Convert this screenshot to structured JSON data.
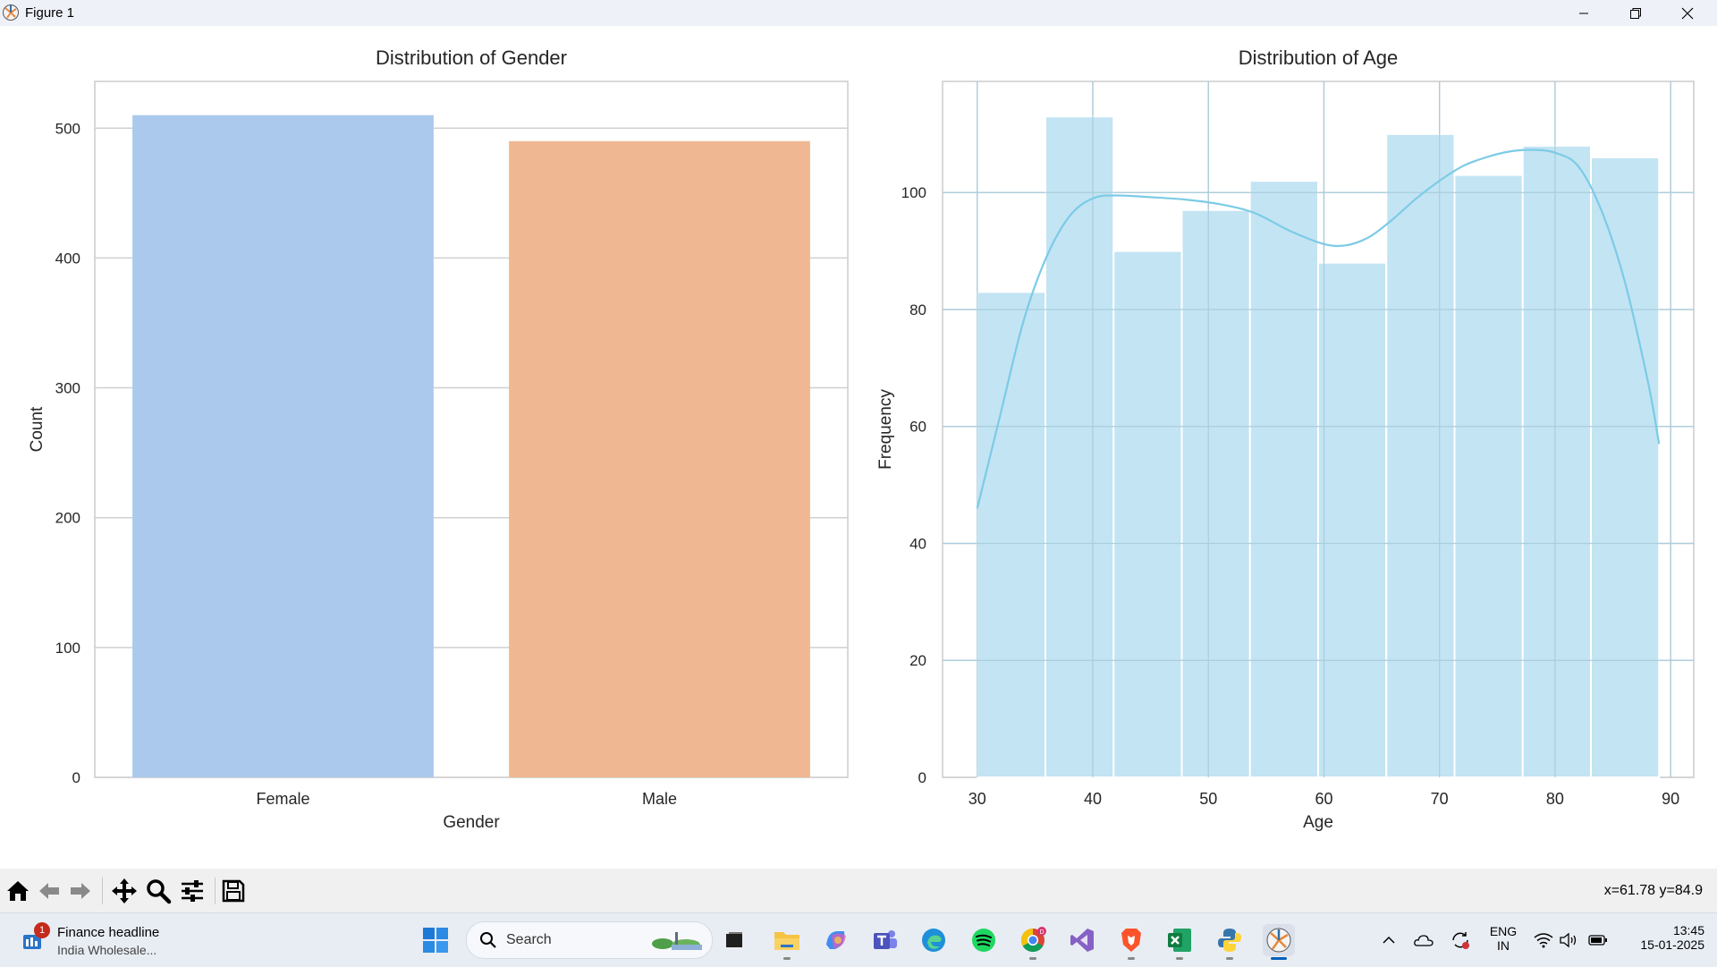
{
  "window": {
    "title": "Figure 1"
  },
  "charts": [
    {
      "type": "bar",
      "title": "Distribution of Gender",
      "xlabel": "Gender",
      "ylabel": "Count",
      "ylim": [
        0,
        536
      ],
      "yticks": [
        0,
        100,
        200,
        300,
        400,
        500
      ],
      "categories": [
        "Female",
        "Male"
      ],
      "values": [
        510,
        490
      ],
      "colors": [
        "#abc9ec",
        "#f0b892"
      ]
    },
    {
      "type": "histogram",
      "title": "Distribution of Age",
      "xlabel": "Age",
      "ylabel": "Frequency",
      "xlim": [
        27,
        92
      ],
      "ylim": [
        0,
        119
      ],
      "xticks": [
        30,
        40,
        50,
        60,
        70,
        80,
        90
      ],
      "yticks": [
        0,
        20,
        40,
        60,
        80,
        100
      ],
      "bar_color": "#c3e4f3",
      "kde_color": "#7ccbe6",
      "bins": [
        {
          "start": 30.0,
          "end": 35.9,
          "count": 83
        },
        {
          "start": 35.9,
          "end": 41.8,
          "count": 113
        },
        {
          "start": 41.8,
          "end": 47.7,
          "count": 90
        },
        {
          "start": 47.7,
          "end": 53.6,
          "count": 97
        },
        {
          "start": 53.6,
          "end": 59.5,
          "count": 102
        },
        {
          "start": 59.5,
          "end": 65.4,
          "count": 88
        },
        {
          "start": 65.4,
          "end": 71.3,
          "count": 110
        },
        {
          "start": 71.3,
          "end": 77.2,
          "count": 103
        },
        {
          "start": 77.2,
          "end": 83.1,
          "count": 108
        },
        {
          "start": 83.1,
          "end": 89.0,
          "count": 106
        }
      ],
      "kde": [
        [
          30,
          46
        ],
        [
          32,
          62
        ],
        [
          34,
          78
        ],
        [
          36,
          89
        ],
        [
          38,
          96
        ],
        [
          40,
          99
        ],
        [
          42,
          99.5
        ],
        [
          45,
          99.2
        ],
        [
          48,
          98.8
        ],
        [
          51,
          98
        ],
        [
          54,
          96.5
        ],
        [
          57,
          93.5
        ],
        [
          60,
          91.2
        ],
        [
          62,
          91
        ],
        [
          64,
          92.5
        ],
        [
          66,
          95.5
        ],
        [
          68,
          99
        ],
        [
          70,
          102
        ],
        [
          72,
          104.5
        ],
        [
          74,
          106
        ],
        [
          76,
          107
        ],
        [
          78,
          107.3
        ],
        [
          80,
          106.8
        ],
        [
          82,
          104.5
        ],
        [
          84,
          97
        ],
        [
          86,
          85
        ],
        [
          88,
          68
        ],
        [
          89,
          57
        ]
      ]
    }
  ],
  "toolbar": {
    "buttons": [
      "home-icon",
      "back-icon",
      "forward-icon",
      "pan-icon",
      "zoom-icon",
      "configure-icon",
      "save-icon"
    ],
    "coords_text": "x=61.78 y=84.9"
  },
  "taskbar": {
    "news_badge": "1",
    "news_title": "Finance headline",
    "news_subtitle": "India Wholesale...",
    "search_label": "Search",
    "language_top": "ENG",
    "language_bottom": "IN",
    "time": "13:45",
    "date": "15-01-2025",
    "chrome_badge": "D"
  }
}
